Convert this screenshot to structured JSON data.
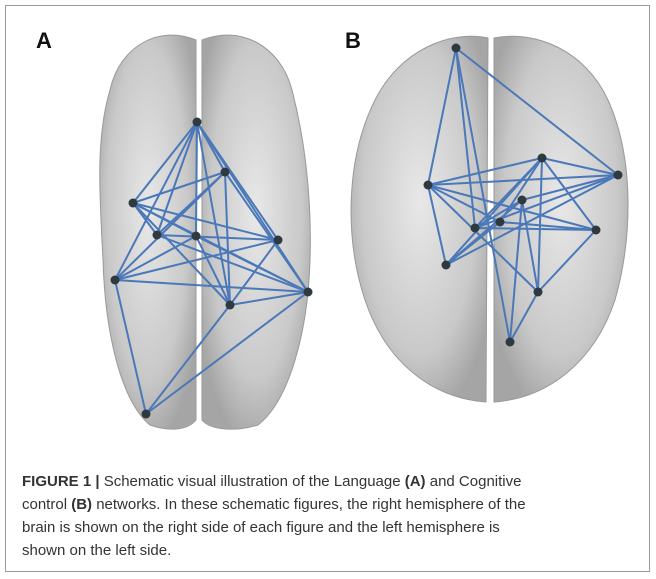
{
  "figure": {
    "panels": [
      {
        "label": "A"
      },
      {
        "label": "B"
      }
    ],
    "caption": {
      "segments": [
        "FIGURE 1 |",
        " Schematic visual illustration of the Language ",
        "(A)",
        " and Cognitive",
        "control ",
        "(B)",
        " networks. In these schematic figures, the right hemisphere of the",
        "brain is shown on the right side of each figure and the left hemisphere is",
        "shown on the left side."
      ]
    }
  }
}
